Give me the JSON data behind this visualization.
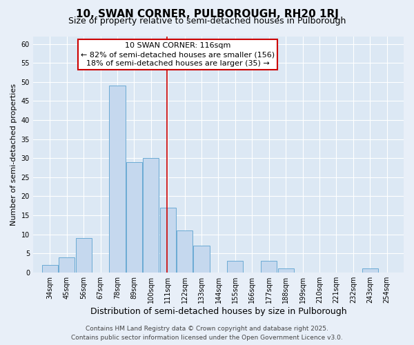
{
  "title": "10, SWAN CORNER, PULBOROUGH, RH20 1RJ",
  "subtitle": "Size of property relative to semi-detached houses in Pulborough",
  "xlabel": "Distribution of semi-detached houses by size in Pulborough",
  "ylabel": "Number of semi-detached properties",
  "bin_labels": [
    "34sqm",
    "45sqm",
    "56sqm",
    "67sqm",
    "78sqm",
    "89sqm",
    "100sqm",
    "111sqm",
    "122sqm",
    "133sqm",
    "144sqm",
    "155sqm",
    "166sqm",
    "177sqm",
    "188sqm",
    "199sqm",
    "210sqm",
    "221sqm",
    "232sqm",
    "243sqm",
    "254sqm"
  ],
  "bin_edges": [
    34,
    45,
    56,
    67,
    78,
    89,
    100,
    111,
    122,
    133,
    144,
    155,
    166,
    177,
    188,
    199,
    210,
    221,
    232,
    243,
    254
  ],
  "bar_values": [
    2,
    4,
    9,
    0,
    49,
    29,
    30,
    17,
    11,
    7,
    0,
    3,
    0,
    3,
    1,
    0,
    0,
    0,
    0,
    1
  ],
  "bar_color": "#c5d8ee",
  "bar_edge_color": "#6aaad4",
  "ref_line_x": 116,
  "ref_line_color": "#cc0000",
  "annotation_title": "10 SWAN CORNER: 116sqm",
  "annotation_line1": "← 82% of semi-detached houses are smaller (156)",
  "annotation_line2": "18% of semi-detached houses are larger (35) →",
  "annotation_box_color": "#ffffff",
  "annotation_box_edge": "#cc0000",
  "ylim": [
    0,
    62
  ],
  "yticks": [
    0,
    5,
    10,
    15,
    20,
    25,
    30,
    35,
    40,
    45,
    50,
    55,
    60
  ],
  "background_color": "#e8eff8",
  "plot_bg_color": "#dce8f4",
  "footer1": "Contains HM Land Registry data © Crown copyright and database right 2025.",
  "footer2": "Contains public sector information licensed under the Open Government Licence v3.0.",
  "title_fontsize": 11,
  "subtitle_fontsize": 9,
  "xlabel_fontsize": 9,
  "ylabel_fontsize": 8,
  "tick_fontsize": 7,
  "annotation_fontsize": 8,
  "footer_fontsize": 6.5
}
